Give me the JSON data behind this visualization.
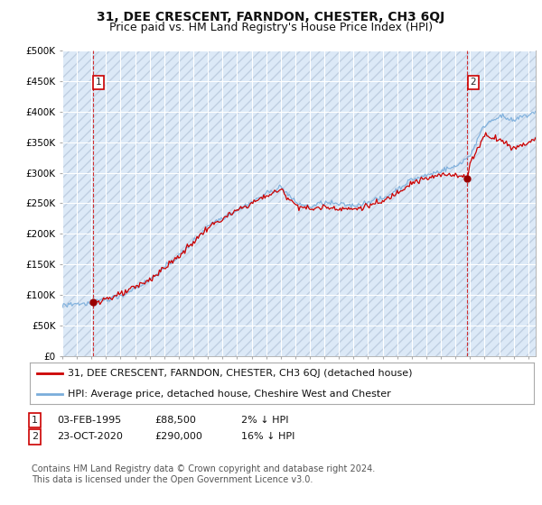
{
  "title": "31, DEE CRESCENT, FARNDON, CHESTER, CH3 6QJ",
  "subtitle": "Price paid vs. HM Land Registry's House Price Index (HPI)",
  "ylim": [
    0,
    500000
  ],
  "yticks": [
    0,
    50000,
    100000,
    150000,
    200000,
    250000,
    300000,
    350000,
    400000,
    450000,
    500000
  ],
  "ytick_labels": [
    "£0",
    "£50K",
    "£100K",
    "£150K",
    "£200K",
    "£250K",
    "£300K",
    "£350K",
    "£400K",
    "£450K",
    "£500K"
  ],
  "xlim_start": 1993.0,
  "xlim_end": 2025.5,
  "background_color": "#ffffff",
  "plot_bg_color": "#dce9f7",
  "grid_color": "#ffffff",
  "hatch_color": "#b8c8dc",
  "red_line_color": "#cc0000",
  "blue_line_color": "#7aaddb",
  "marker_color_red": "#990000",
  "annotation_box_color": "#cc0000",
  "sale1_date": 1995.09,
  "sale1_price": 88500,
  "sale2_date": 2020.82,
  "sale2_price": 290000,
  "legend_line1": "31, DEE CRESCENT, FARNDON, CHESTER, CH3 6QJ (detached house)",
  "legend_line2": "HPI: Average price, detached house, Cheshire West and Chester",
  "footnote3": "Contains HM Land Registry data © Crown copyright and database right 2024.",
  "footnote4": "This data is licensed under the Open Government Licence v3.0.",
  "title_fontsize": 10,
  "subtitle_fontsize": 9,
  "tick_fontsize": 7.5
}
